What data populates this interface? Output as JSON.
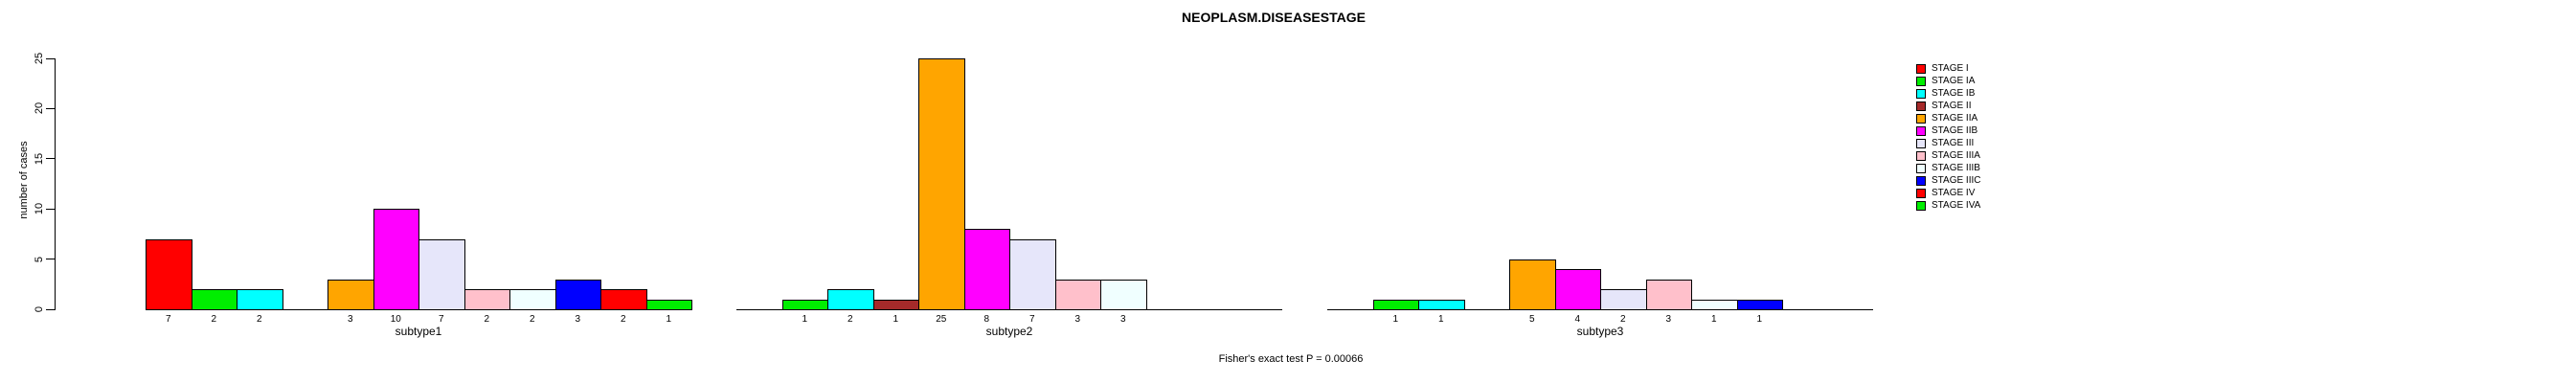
{
  "chart_data": {
    "type": "bar",
    "title": "NEOPLASM.DISEASESTAGE",
    "ylabel": "number of cases",
    "xlabel": "",
    "ylim": [
      0,
      25
    ],
    "yticks": [
      0,
      5,
      10,
      15,
      20,
      25
    ],
    "grid": false,
    "legend_position": "right",
    "annotation": "Fisher's exact test P = 0.00066",
    "stages": [
      {
        "label": "STAGE I",
        "color": "#FF0000"
      },
      {
        "label": "STAGE IA",
        "color": "#00EE00"
      },
      {
        "label": "STAGE IB",
        "color": "#00FFFF"
      },
      {
        "label": "STAGE II",
        "color": "#A52A2A"
      },
      {
        "label": "STAGE IIA",
        "color": "#FFA500"
      },
      {
        "label": "STAGE IIB",
        "color": "#FF00FF"
      },
      {
        "label": "STAGE III",
        "color": "#E6E6FA"
      },
      {
        "label": "STAGE IIIA",
        "color": "#FFC0CB"
      },
      {
        "label": "STAGE IIIB",
        "color": "#F0FFFF"
      },
      {
        "label": "STAGE IIIC",
        "color": "#0000FF"
      },
      {
        "label": "STAGE IV",
        "color": "#FF0000"
      },
      {
        "label": "STAGE IVA",
        "color": "#00EE00"
      }
    ],
    "groups": [
      {
        "label": "subtype1",
        "values": [
          7,
          2,
          2,
          0,
          3,
          10,
          7,
          2,
          2,
          3,
          2,
          1
        ]
      },
      {
        "label": "subtype2",
        "values": [
          0,
          1,
          2,
          1,
          25,
          8,
          7,
          3,
          3,
          0,
          0,
          0
        ]
      },
      {
        "label": "subtype3",
        "values": [
          0,
          1,
          1,
          0,
          5,
          4,
          2,
          3,
          1,
          1,
          0,
          0
        ]
      }
    ]
  }
}
